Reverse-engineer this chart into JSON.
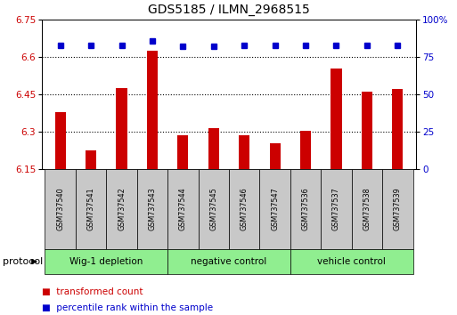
{
  "title": "GDS5185 / ILMN_2968515",
  "samples": [
    "GSM737540",
    "GSM737541",
    "GSM737542",
    "GSM737543",
    "GSM737544",
    "GSM737545",
    "GSM737546",
    "GSM737547",
    "GSM737536",
    "GSM737537",
    "GSM737538",
    "GSM737539"
  ],
  "bar_values": [
    6.38,
    6.225,
    6.475,
    6.625,
    6.285,
    6.315,
    6.285,
    6.255,
    6.305,
    6.555,
    6.46,
    6.47
  ],
  "percentile_values": [
    83,
    83,
    83,
    86,
    82,
    82,
    83,
    83,
    83,
    83,
    83,
    83
  ],
  "bar_color": "#cc0000",
  "dot_color": "#0000cc",
  "ylim_left": [
    6.15,
    6.75
  ],
  "ylim_right": [
    0,
    100
  ],
  "yticks_left": [
    6.15,
    6.3,
    6.45,
    6.6,
    6.75
  ],
  "ytick_labels_left": [
    "6.15",
    "6.3",
    "6.45",
    "6.6",
    "6.75"
  ],
  "yticks_right": [
    0,
    25,
    50,
    75,
    100
  ],
  "ytick_labels_right": [
    "0",
    "25",
    "50",
    "75",
    "100%"
  ],
  "groups": [
    {
      "label": "Wig-1 depletion",
      "start": 0,
      "end": 3
    },
    {
      "label": "negative control",
      "start": 4,
      "end": 7
    },
    {
      "label": "vehicle control",
      "start": 8,
      "end": 11
    }
  ],
  "group_colors": [
    "#aaddaa",
    "#66ee66",
    "#44dd44"
  ],
  "group_bg_color": "#90ee90",
  "sample_box_color": "#c8c8c8",
  "protocol_label": "protocol",
  "legend_red_label": "transformed count",
  "legend_blue_label": "percentile rank within the sample",
  "background_color": "#ffffff"
}
